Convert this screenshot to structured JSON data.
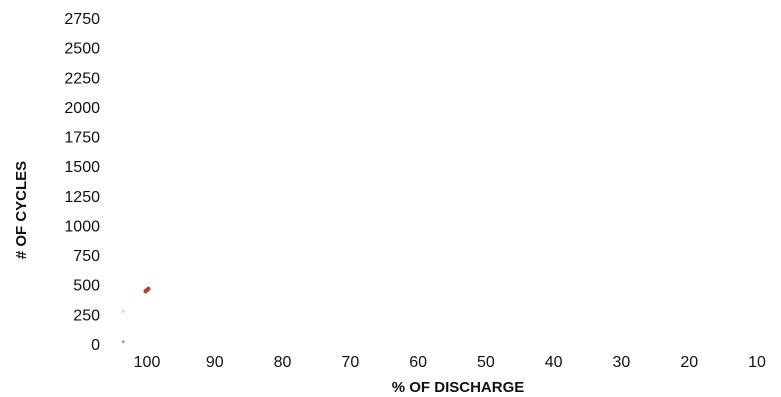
{
  "chart_data": {
    "type": "scatter",
    "title": "",
    "xlabel": "% OF DISCHARGE",
    "ylabel": "# OF CYCLES",
    "x_ticks": [
      "100",
      "90",
      "80",
      "70",
      "60",
      "50",
      "40",
      "30",
      "20",
      "10"
    ],
    "y_ticks": [
      "0",
      "250",
      "500",
      "750",
      "1000",
      "1250",
      "1500",
      "1750",
      "2000",
      "2250",
      "2500",
      "2750"
    ],
    "xlim": [
      104,
      9
    ],
    "ylim": [
      0,
      2750
    ],
    "grid": false,
    "legend": "none",
    "series": [
      {
        "color": "#c0392b",
        "points": [
          {
            "x": 99.8,
            "y": 465
          },
          {
            "x": 100.0,
            "y": 455
          },
          {
            "x": 100.2,
            "y": 445
          }
        ]
      },
      {
        "color": "#cccccc",
        "points": [
          {
            "x": 103.5,
            "y": 275
          }
        ]
      },
      {
        "color": "#999999",
        "points": [
          {
            "x": 103.5,
            "y": 20
          }
        ]
      }
    ]
  }
}
